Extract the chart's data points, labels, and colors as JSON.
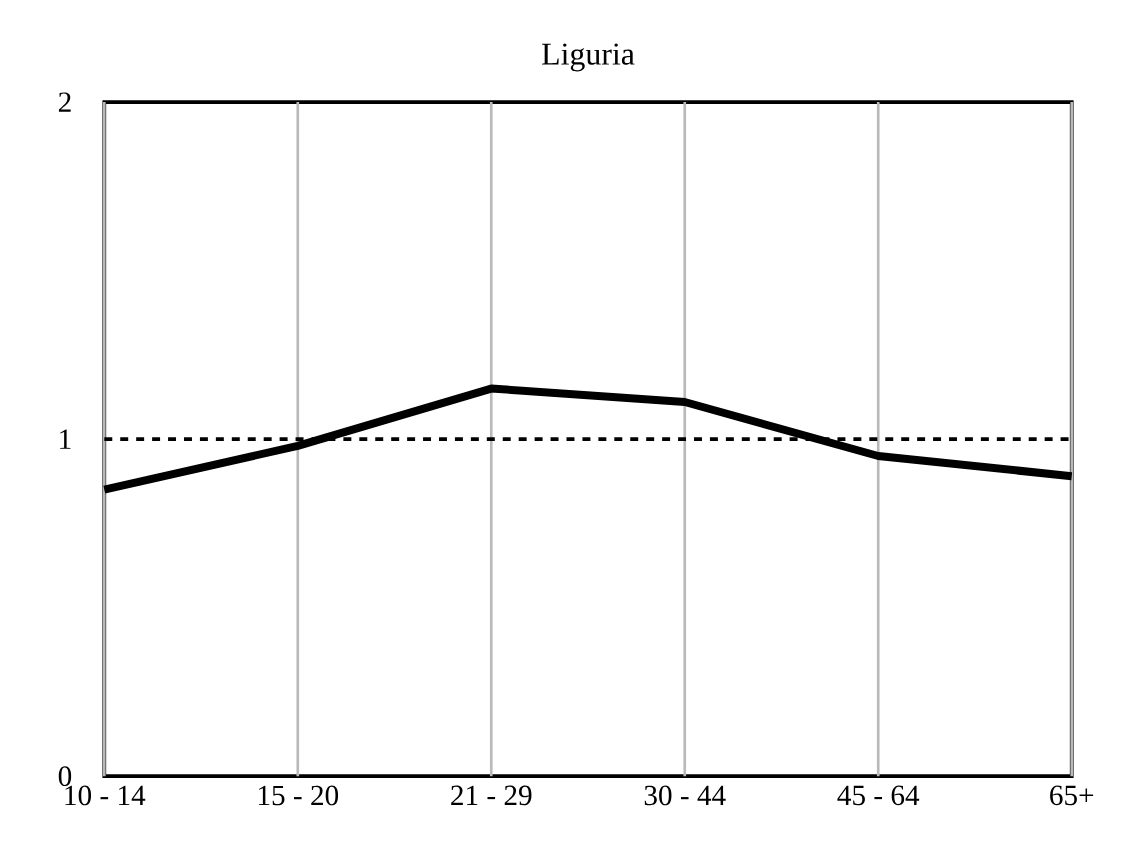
{
  "chart_data": {
    "type": "line",
    "title": "Liguria",
    "categories": [
      "10 - 14",
      "15 - 20",
      "21 - 29",
      "30 - 44",
      "45 - 64",
      "65+"
    ],
    "series": [
      {
        "color": "#000000",
        "values": [
          0.85,
          0.98,
          1.15,
          1.11,
          0.95,
          0.89
        ]
      }
    ],
    "ylim": [
      0,
      2
    ],
    "yticks": [
      0,
      1,
      2
    ],
    "grid": "x",
    "marker": "none",
    "line_style": "solid",
    "ref_lines": [
      {
        "axis": "y",
        "value": 1,
        "color": "#000000",
        "line_style": "dashed"
      }
    ]
  }
}
